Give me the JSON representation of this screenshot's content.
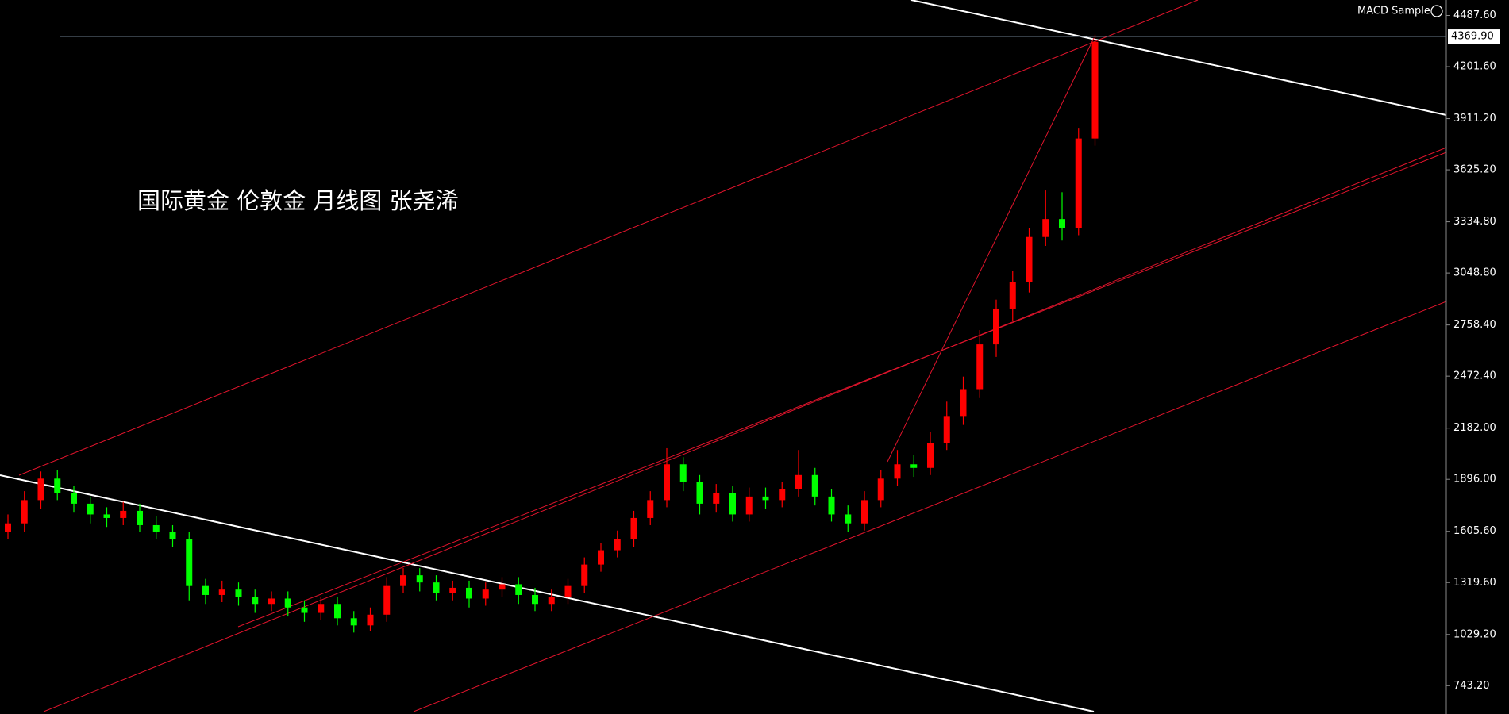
{
  "chart_data": {
    "type": "candlestick",
    "title": "国际黄金 伦敦金 月线图 张尧浠",
    "indicator": "MACD Sample",
    "up_color": "#ff0000",
    "down_color": "#00ff00",
    "open": [
      1600,
      1650,
      1780,
      1900,
      1820,
      1760,
      1700,
      1680,
      1720,
      1640,
      1600,
      1560,
      1300,
      1250,
      1280,
      1240,
      1200,
      1230,
      1180,
      1150,
      1200,
      1120,
      1080,
      1140,
      1300,
      1360,
      1320,
      1260,
      1290,
      1230,
      1280,
      1310,
      1250,
      1200,
      1240,
      1300,
      1420,
      1500,
      1560,
      1680,
      1780,
      1980,
      1880,
      1760,
      1820,
      1700,
      1800,
      1780,
      1840,
      1920,
      1800,
      1700,
      1650,
      1780,
      1900,
      1980,
      1960,
      2100,
      2250,
      2400,
      2650,
      2850,
      3000,
      3250,
      3350,
      3300,
      3800
    ],
    "high": [
      1700,
      1830,
      1940,
      1950,
      1860,
      1800,
      1740,
      1770,
      1760,
      1690,
      1640,
      1600,
      1340,
      1330,
      1320,
      1280,
      1270,
      1270,
      1220,
      1240,
      1240,
      1160,
      1180,
      1350,
      1400,
      1400,
      1360,
      1330,
      1330,
      1320,
      1350,
      1350,
      1290,
      1280,
      1340,
      1460,
      1540,
      1610,
      1720,
      1830,
      2070,
      2020,
      1920,
      1870,
      1860,
      1850,
      1850,
      1880,
      2060,
      1960,
      1840,
      1750,
      1830,
      1950,
      2060,
      2030,
      2160,
      2330,
      2470,
      2730,
      2900,
      3060,
      3300,
      3510,
      3500,
      3860,
      4380
    ],
    "low": [
      1560,
      1600,
      1730,
      1780,
      1710,
      1650,
      1630,
      1640,
      1600,
      1560,
      1520,
      1220,
      1200,
      1210,
      1190,
      1150,
      1160,
      1130,
      1100,
      1110,
      1080,
      1040,
      1050,
      1100,
      1260,
      1270,
      1220,
      1220,
      1180,
      1190,
      1240,
      1200,
      1160,
      1160,
      1200,
      1260,
      1380,
      1460,
      1520,
      1640,
      1740,
      1830,
      1700,
      1710,
      1660,
      1660,
      1730,
      1740,
      1800,
      1750,
      1660,
      1600,
      1610,
      1740,
      1860,
      1910,
      1920,
      2060,
      2200,
      2350,
      2580,
      2780,
      2940,
      3200,
      3230,
      3260,
      3760
    ],
    "close": [
      1650,
      1780,
      1900,
      1820,
      1760,
      1700,
      1680,
      1720,
      1640,
      1600,
      1560,
      1300,
      1250,
      1280,
      1240,
      1200,
      1230,
      1180,
      1150,
      1200,
      1120,
      1080,
      1140,
      1300,
      1360,
      1320,
      1260,
      1290,
      1230,
      1280,
      1310,
      1250,
      1200,
      1240,
      1300,
      1420,
      1500,
      1560,
      1680,
      1780,
      1980,
      1880,
      1760,
      1820,
      1700,
      1800,
      1780,
      1840,
      1920,
      1800,
      1700,
      1650,
      1780,
      1900,
      1980,
      1960,
      2100,
      2250,
      2400,
      2650,
      2850,
      3000,
      3250,
      3350,
      3300,
      3800,
      4340
    ],
    "last_price": {
      "value": 4369.9,
      "label": "4369.90"
    },
    "ylim": [
      585,
      4574
    ],
    "yticks": [
      {
        "value": 4487.6,
        "label": "4487.60"
      },
      {
        "value": 4201.6,
        "label": "4201.60"
      },
      {
        "value": 3911.2,
        "label": "3911.20"
      },
      {
        "value": 3625.2,
        "label": "3625.20"
      },
      {
        "value": 3334.8,
        "label": "3334.80"
      },
      {
        "value": 3048.8,
        "label": "3048.80"
      },
      {
        "value": 2758.4,
        "label": "2758.40"
      },
      {
        "value": 2472.4,
        "label": "2472.40"
      },
      {
        "value": 2182,
        "label": "2182.00"
      },
      {
        "value": 1896,
        "label": "1896.00"
      },
      {
        "value": 1605.6,
        "label": "1605.60"
      },
      {
        "value": 1319.6,
        "label": "1319.60"
      },
      {
        "value": 1029.2,
        "label": "1029.20"
      },
      {
        "value": 743.2,
        "label": "743.20"
      }
    ]
  }
}
